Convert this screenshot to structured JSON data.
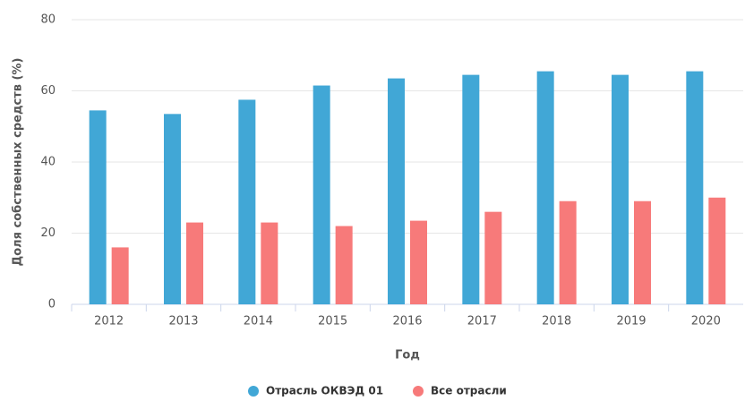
{
  "chart_data": {
    "type": "bar",
    "x_label": "Год",
    "y_label": "Доля собственных средств (%)",
    "categories": [
      "2012",
      "2013",
      "2014",
      "2015",
      "2016",
      "2017",
      "2018",
      "2019",
      "2020"
    ],
    "series": [
      {
        "name": "Отрасль ОКВЭД 01",
        "color": "#41a7d6",
        "values": [
          54.5,
          53.5,
          57.5,
          61.5,
          63.5,
          64.5,
          65.5,
          64.5,
          65.5
        ]
      },
      {
        "name": "Все отрасли",
        "color": "#f77a7a",
        "values": [
          16,
          23,
          23,
          22,
          23.5,
          26,
          29,
          29,
          30
        ]
      }
    ],
    "ylim": [
      0,
      80
    ],
    "yticks": [
      0,
      20,
      40,
      60,
      80
    ],
    "grid": true,
    "legend": "bottom"
  }
}
